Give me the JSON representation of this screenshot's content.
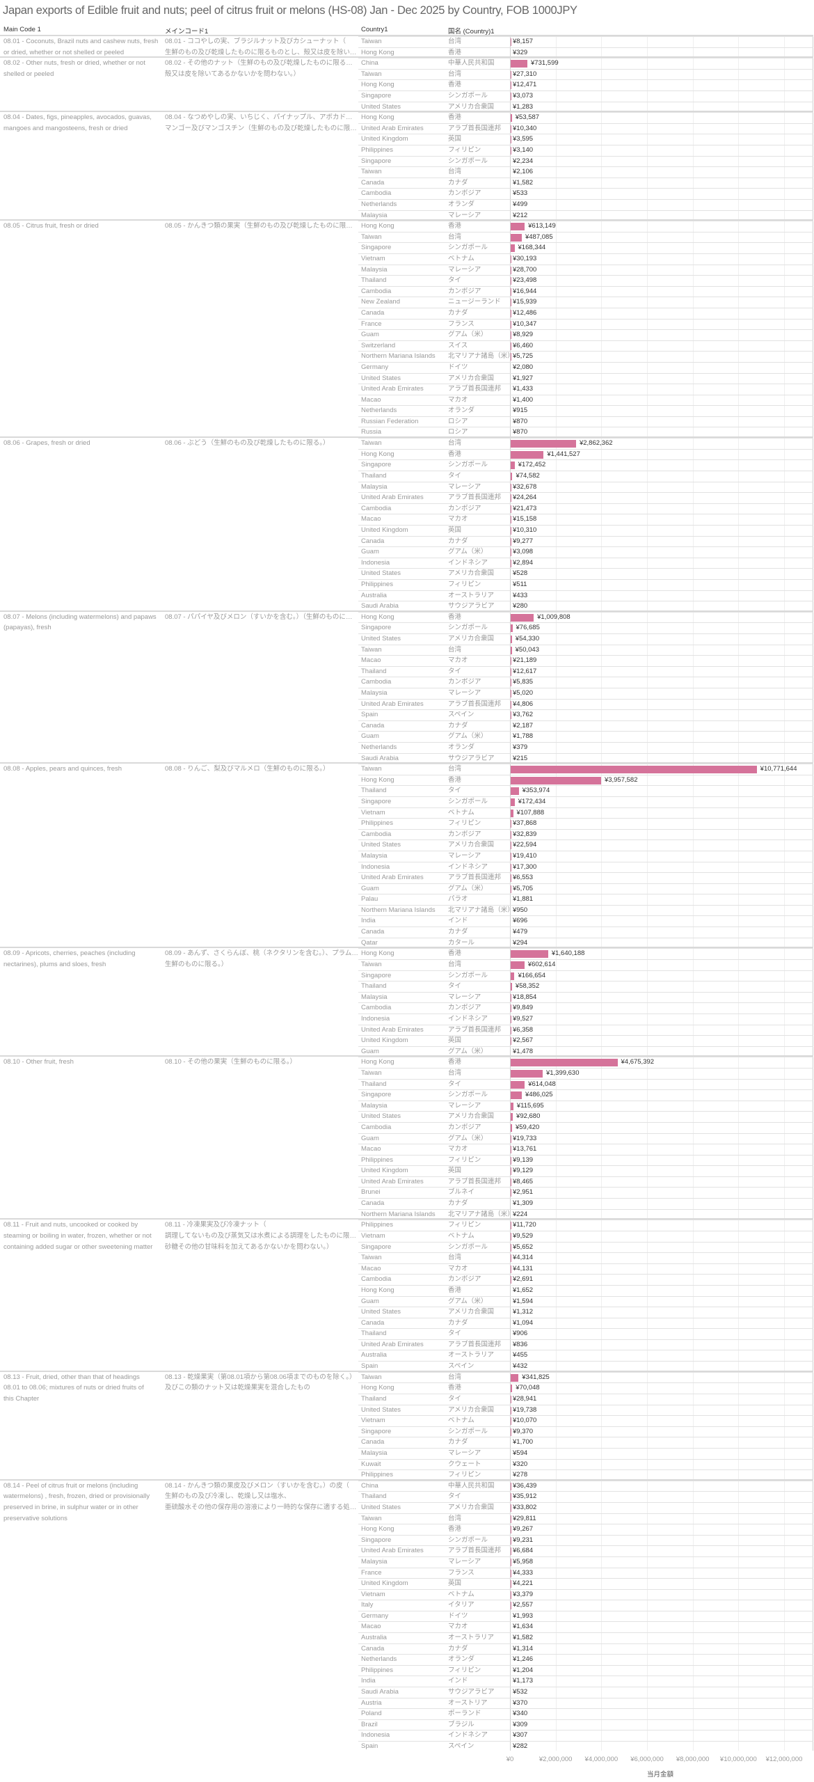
{
  "chart_data": {
    "type": "bar",
    "title": "Japan exports of Edible fruit and nuts; peel of citrus fruit or melons (HS-08) Jan - Dec 2025 by Country, FOB 1000JPY",
    "headers": [
      "Main Code 1",
      "メインコード1",
      "Country1",
      "国名 (Country)1"
    ],
    "xlabel": "当月金額",
    "xlim": [
      0,
      12000000
    ],
    "ticks": [
      "¥0",
      "¥2,000,000",
      "¥4,000,000",
      "¥6,000,000",
      "¥8,000,000",
      "¥10,000,000",
      "¥12,000,000"
    ],
    "tick_values": [
      0,
      2000000,
      4000000,
      6000000,
      8000000,
      10000000,
      12000000
    ],
    "grid": true,
    "bar_color": "#d5739a",
    "sections": [
      {
        "en": [
          "08.01 - Coconuts, Brazil nuts and cashew nuts, fresh",
          "or dried, whether or not shelled or peeled"
        ],
        "jp": [
          "08.01 - ココやしの実、ブラジルナット及びカシューナット（",
          "生鮮のもの及び乾燥したものに限るものとし、殻又は皮を除いてあるかない.."
        ],
        "rows": [
          [
            "Taiwan",
            "台湾",
            8157
          ],
          [
            "Hong Kong",
            "香港",
            329
          ]
        ]
      },
      {
        "en": [
          "08.02 - Other nuts, fresh or dried, whether or not",
          "shelled or peeled"
        ],
        "jp": [
          "08.02 - その他のナット（生鮮のもの及び乾燥したものに限るものとし、",
          "殻又は皮を除いてあるかないかを問わない。）"
        ],
        "rows": [
          [
            "China",
            "中華人民共和国",
            731599
          ],
          [
            "Taiwan",
            "台湾",
            27310
          ],
          [
            "Hong Kong",
            "香港",
            12471
          ],
          [
            "Singapore",
            "シンガポール",
            3073
          ],
          [
            "United States",
            "アメリカ合衆国",
            1283
          ]
        ]
      },
      {
        "en": [
          "08.04 - Dates, figs, pineapples, avocados, guavas,",
          "mangoes and mangosteens, fresh or dried"
        ],
        "jp": [
          "08.04 - なつめやしの実、いちじく、パイナップル、アボカドー、グアバ、",
          "マンゴー及びマンゴスチン（生鮮のもの及び乾燥したものに限る。）"
        ],
        "rows": [
          [
            "Hong Kong",
            "香港",
            53587
          ],
          [
            "United Arab Emirates",
            "アラブ首長国連邦",
            10340
          ],
          [
            "United Kingdom",
            "英国",
            3595
          ],
          [
            "Philippines",
            "フィリピン",
            3140
          ],
          [
            "Singapore",
            "シンガポール",
            2234
          ],
          [
            "Taiwan",
            "台湾",
            2106
          ],
          [
            "Canada",
            "カナダ",
            1582
          ],
          [
            "Cambodia",
            "カンボジア",
            533
          ],
          [
            "Netherlands",
            "オランダ",
            499
          ],
          [
            "Malaysia",
            "マレーシア",
            212
          ]
        ]
      },
      {
        "en": [
          "08.05 - Citrus fruit, fresh or dried"
        ],
        "jp": [
          "08.05 - かんきつ類の果実（生鮮のもの及び乾燥したものに限る。）"
        ],
        "rows": [
          [
            "Hong Kong",
            "香港",
            613149
          ],
          [
            "Taiwan",
            "台湾",
            487085
          ],
          [
            "Singapore",
            "シンガポール",
            168344
          ],
          [
            "Vietnam",
            "ベトナム",
            30193
          ],
          [
            "Malaysia",
            "マレーシア",
            28700
          ],
          [
            "Thailand",
            "タイ",
            23498
          ],
          [
            "Cambodia",
            "カンボジア",
            16944
          ],
          [
            "New Zealand",
            "ニュージーランド",
            15939
          ],
          [
            "Canada",
            "カナダ",
            12486
          ],
          [
            "France",
            "フランス",
            10347
          ],
          [
            "Guam",
            "グアム（米）",
            8929
          ],
          [
            "Switzerland",
            "スイス",
            6460
          ],
          [
            "Northern Mariana Islands",
            "北マリアナ諸島（米）",
            5725
          ],
          [
            "Germany",
            "ドイツ",
            2080
          ],
          [
            "United States",
            "アメリカ合衆国",
            1927
          ],
          [
            "United Arab Emirates",
            "アラブ首長国連邦",
            1433
          ],
          [
            "Macao",
            "マカオ",
            1400
          ],
          [
            "Netherlands",
            "オランダ",
            915
          ],
          [
            "Russian Federation",
            "ロシア",
            870
          ],
          [
            "Russia",
            "ロシア",
            870
          ]
        ]
      },
      {
        "en": [
          "08.06 - Grapes, fresh or dried"
        ],
        "jp": [
          "08.06 - ぶどう（生鮮のもの及び乾燥したものに限る。）"
        ],
        "rows": [
          [
            "Taiwan",
            "台湾",
            2862362
          ],
          [
            "Hong Kong",
            "香港",
            1441527
          ],
          [
            "Singapore",
            "シンガポール",
            172452
          ],
          [
            "Thailand",
            "タイ",
            74582
          ],
          [
            "Malaysia",
            "マレーシア",
            32678
          ],
          [
            "United Arab Emirates",
            "アラブ首長国連邦",
            24264
          ],
          [
            "Cambodia",
            "カンボジア",
            21473
          ],
          [
            "Macao",
            "マカオ",
            15158
          ],
          [
            "United Kingdom",
            "英国",
            10310
          ],
          [
            "Canada",
            "カナダ",
            9277
          ],
          [
            "Guam",
            "グアム（米）",
            3098
          ],
          [
            "Indonesia",
            "インドネシア",
            2894
          ],
          [
            "United States",
            "アメリカ合衆国",
            528
          ],
          [
            "Philippines",
            "フィリピン",
            511
          ],
          [
            "Australia",
            "オーストラリア",
            433
          ],
          [
            "Saudi Arabia",
            "サウジアラビア",
            280
          ]
        ]
      },
      {
        "en": [
          "08.07 - Melons (including watermelons) and papaws",
          "(papayas), fresh"
        ],
        "jp": [
          "08.07 - パパイヤ及びメロン（すいかを含む。）（生鮮のものに限る。）"
        ],
        "rows": [
          [
            "Hong Kong",
            "香港",
            1009808
          ],
          [
            "Singapore",
            "シンガポール",
            76685
          ],
          [
            "United States",
            "アメリカ合衆国",
            54330
          ],
          [
            "Taiwan",
            "台湾",
            50043
          ],
          [
            "Macao",
            "マカオ",
            21189
          ],
          [
            "Thailand",
            "タイ",
            12617
          ],
          [
            "Cambodia",
            "カンボジア",
            5835
          ],
          [
            "Malaysia",
            "マレーシア",
            5020
          ],
          [
            "United Arab Emirates",
            "アラブ首長国連邦",
            4806
          ],
          [
            "Spain",
            "スペイン",
            3762
          ],
          [
            "Canada",
            "カナダ",
            2187
          ],
          [
            "Guam",
            "グアム（米）",
            1788
          ],
          [
            "Netherlands",
            "オランダ",
            379
          ],
          [
            "Saudi Arabia",
            "サウジアラビア",
            215
          ]
        ]
      },
      {
        "en": [
          "08.08 - Apples, pears and quinces, fresh"
        ],
        "jp": [
          "08.08 - りんご、梨及びマルメロ（生鮮のものに限る。）"
        ],
        "rows": [
          [
            "Taiwan",
            "台湾",
            10771644
          ],
          [
            "Hong Kong",
            "香港",
            3957582
          ],
          [
            "Thailand",
            "タイ",
            353974
          ],
          [
            "Singapore",
            "シンガポール",
            172434
          ],
          [
            "Vietnam",
            "ベトナム",
            107888
          ],
          [
            "Philippines",
            "フィリピン",
            37868
          ],
          [
            "Cambodia",
            "カンボジア",
            32839
          ],
          [
            "United States",
            "アメリカ合衆国",
            22594
          ],
          [
            "Malaysia",
            "マレーシア",
            19410
          ],
          [
            "Indonesia",
            "インドネシア",
            17300
          ],
          [
            "United Arab Emirates",
            "アラブ首長国連邦",
            6553
          ],
          [
            "Guam",
            "グアム（米）",
            5705
          ],
          [
            "Palau",
            "パラオ",
            1881
          ],
          [
            "Northern Mariana Islands",
            "北マリアナ諸島（米）",
            950
          ],
          [
            "India",
            "インド",
            696
          ],
          [
            "Canada",
            "カナダ",
            479
          ],
          [
            "Qatar",
            "カタール",
            294
          ]
        ]
      },
      {
        "en": [
          "08.09 - Apricots, cherries, peaches (including",
          "nectarines), plums and sloes, fresh"
        ],
        "jp": [
          "08.09 - あんず、さくらんぼ、桃（ネクタリンを含む。）、プラム及びスロー（",
          "生鮮のものに限る。）"
        ],
        "rows": [
          [
            "Hong Kong",
            "香港",
            1640188
          ],
          [
            "Taiwan",
            "台湾",
            602614
          ],
          [
            "Singapore",
            "シンガポール",
            166654
          ],
          [
            "Thailand",
            "タイ",
            58352
          ],
          [
            "Malaysia",
            "マレーシア",
            18854
          ],
          [
            "Cambodia",
            "カンボジア",
            9849
          ],
          [
            "Indonesia",
            "インドネシア",
            9527
          ],
          [
            "United Arab Emirates",
            "アラブ首長国連邦",
            6358
          ],
          [
            "United Kingdom",
            "英国",
            2567
          ],
          [
            "Guam",
            "グアム（米）",
            1478
          ]
        ]
      },
      {
        "en": [
          "08.10 - Other fruit, fresh"
        ],
        "jp": [
          "08.10 - その他の果実（生鮮のものに限る。）"
        ],
        "rows": [
          [
            "Hong Kong",
            "香港",
            4675392
          ],
          [
            "Taiwan",
            "台湾",
            1399630
          ],
          [
            "Thailand",
            "タイ",
            614048
          ],
          [
            "Singapore",
            "シンガポール",
            486025
          ],
          [
            "Malaysia",
            "マレーシア",
            115695
          ],
          [
            "United States",
            "アメリカ合衆国",
            92680
          ],
          [
            "Cambodia",
            "カンボジア",
            59420
          ],
          [
            "Guam",
            "グアム（米）",
            19733
          ],
          [
            "Macao",
            "マカオ",
            13761
          ],
          [
            "Philippines",
            "フィリピン",
            9139
          ],
          [
            "United Kingdom",
            "英国",
            9129
          ],
          [
            "United Arab Emirates",
            "アラブ首長国連邦",
            8465
          ],
          [
            "Brunei",
            "ブルネイ",
            2951
          ],
          [
            "Canada",
            "カナダ",
            1309
          ],
          [
            "Northern Mariana Islands",
            "北マリアナ諸島（米）",
            224
          ]
        ]
      },
      {
        "en": [
          "08.11 - Fruit and nuts, uncooked or cooked by",
          "steaming or boiling in water, frozen, whether or not",
          "containing added sugar or other sweetening matter"
        ],
        "jp": [
          "08.11 - 冷凍果実及び冷凍ナット（",
          "調理してないもの及び蒸気又は水煮による調理をしたものに限るものとし、",
          "砂糖その他の甘味料を加えてあるかないかを問わない。）"
        ],
        "rows": [
          [
            "Philippines",
            "フィリピン",
            11720
          ],
          [
            "Vietnam",
            "ベトナム",
            9529
          ],
          [
            "Singapore",
            "シンガポール",
            5652
          ],
          [
            "Taiwan",
            "台湾",
            4314
          ],
          [
            "Macao",
            "マカオ",
            4131
          ],
          [
            "Cambodia",
            "カンボジア",
            2691
          ],
          [
            "Hong Kong",
            "香港",
            1652
          ],
          [
            "Guam",
            "グアム（米）",
            1594
          ],
          [
            "United States",
            "アメリカ合衆国",
            1312
          ],
          [
            "Canada",
            "カナダ",
            1094
          ],
          [
            "Thailand",
            "タイ",
            906
          ],
          [
            "United Arab Emirates",
            "アラブ首長国連邦",
            836
          ],
          [
            "Australia",
            "オーストラリア",
            455
          ],
          [
            "Spain",
            "スペイン",
            432
          ]
        ]
      },
      {
        "en": [
          "08.13 - Fruit, dried, other than that of headings",
          "08.01 to 08.06; mixtures of nuts or dried fruits of",
          "this Chapter"
        ],
        "jp": [
          "08.13 - 乾燥果実（第08.01項から第08.06項までのものを除く。）",
          "及びこの類のナット又は乾燥果実を混合したもの"
        ],
        "rows": [
          [
            "Taiwan",
            "台湾",
            341825
          ],
          [
            "Hong Kong",
            "香港",
            70048
          ],
          [
            "Thailand",
            "タイ",
            28941
          ],
          [
            "United States",
            "アメリカ合衆国",
            19738
          ],
          [
            "Vietnam",
            "ベトナム",
            10070
          ],
          [
            "Singapore",
            "シンガポール",
            9370
          ],
          [
            "Canada",
            "カナダ",
            1700
          ],
          [
            "Malaysia",
            "マレーシア",
            594
          ],
          [
            "Kuwait",
            "クウェート",
            320
          ],
          [
            "Philippines",
            "フィリピン",
            278
          ]
        ]
      },
      {
        "en": [
          "08.14 - Peel of citrus fruit or melons (including",
          "watermelons) , fresh, frozen, dried or provisionally",
          "preserved in brine, in sulphur water or in other",
          "preservative solutions"
        ],
        "jp": [
          "08.14 - かんきつ類の果皮及びメロン（すいかを含む。）の皮（",
          "生鮮のもの及び冷凍し、乾燥し又は塩水、",
          "亜硫酸水その他の保存用の溶液により一時的な保存に適する処理をした.."
        ],
        "rows": [
          [
            "China",
            "中華人民共和国",
            36439
          ],
          [
            "Thailand",
            "タイ",
            35912
          ],
          [
            "United States",
            "アメリカ合衆国",
            33802
          ],
          [
            "Taiwan",
            "台湾",
            29811
          ],
          [
            "Hong Kong",
            "香港",
            9267
          ],
          [
            "Singapore",
            "シンガポール",
            9231
          ],
          [
            "United Arab Emirates",
            "アラブ首長国連邦",
            6684
          ],
          [
            "Malaysia",
            "マレーシア",
            5958
          ],
          [
            "France",
            "フランス",
            4333
          ],
          [
            "United Kingdom",
            "英国",
            4221
          ],
          [
            "Vietnam",
            "ベトナム",
            3379
          ],
          [
            "Italy",
            "イタリア",
            2557
          ],
          [
            "Germany",
            "ドイツ",
            1993
          ],
          [
            "Macao",
            "マカオ",
            1634
          ],
          [
            "Australia",
            "オーストラリア",
            1582
          ],
          [
            "Canada",
            "カナダ",
            1314
          ],
          [
            "Netherlands",
            "オランダ",
            1246
          ],
          [
            "Philippines",
            "フィリピン",
            1204
          ],
          [
            "India",
            "インド",
            1173
          ],
          [
            "Saudi Arabia",
            "サウジアラビア",
            532
          ],
          [
            "Austria",
            "オーストリア",
            370
          ],
          [
            "Poland",
            "ポーランド",
            340
          ],
          [
            "Brazil",
            "ブラジル",
            309
          ],
          [
            "Indonesia",
            "インドネシア",
            307
          ],
          [
            "Spain",
            "スペイン",
            282
          ]
        ]
      }
    ]
  }
}
